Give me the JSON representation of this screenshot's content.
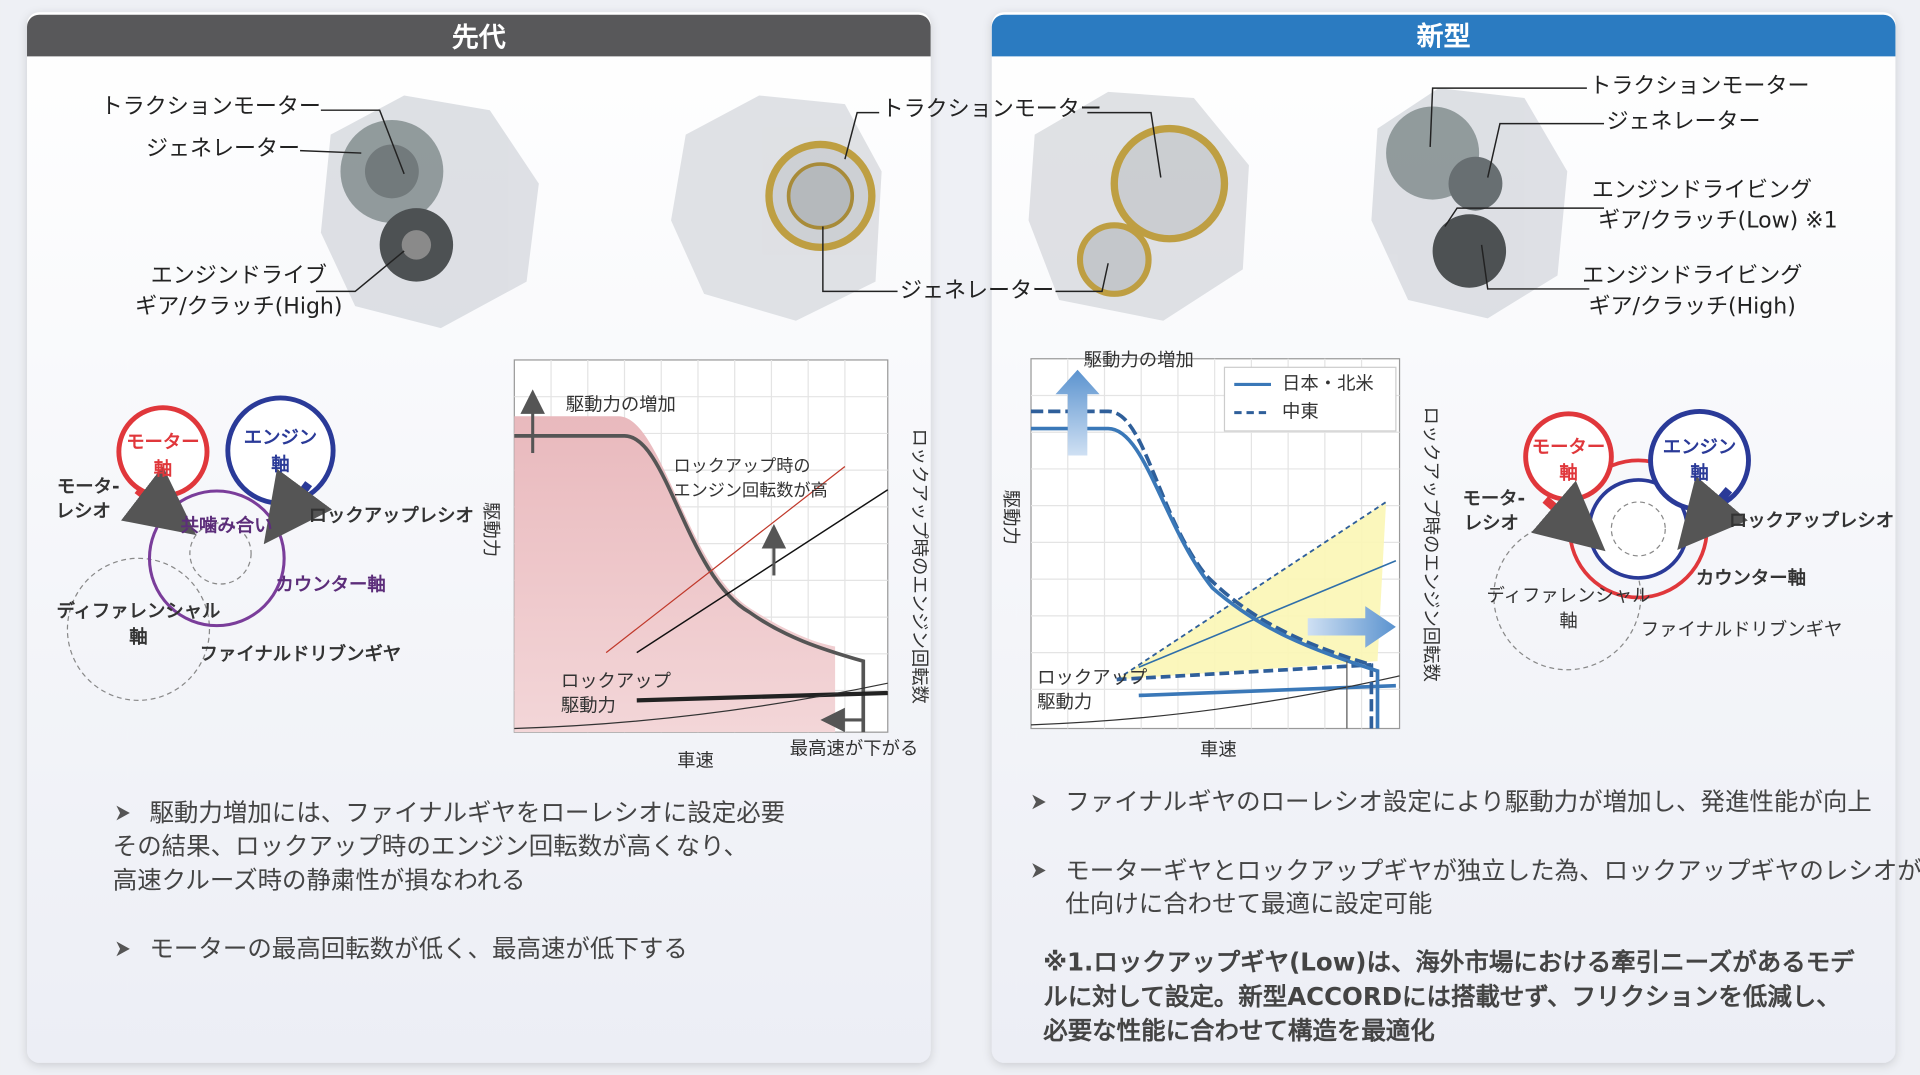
{
  "left": {
    "title": "先代",
    "photo_labels": {
      "traction": "トラクションモーター",
      "generator": "ジェネレーター",
      "drive": [
        "エンジンドライブ",
        "ギア/クラッチ(High)"
      ]
    },
    "gear": {
      "motor_shaft": [
        "モーター",
        "軸"
      ],
      "engine_shaft": [
        "エンジン",
        "軸"
      ],
      "motor_ratio": [
        "モータ-",
        "レシオ"
      ],
      "mesh": "共噛み合い",
      "lockup_ratio": "ロックアップレシオ",
      "counter": "カウンター軸",
      "diff": [
        "ディファレンシャル",
        "軸"
      ],
      "final": "ファイナルドリブンギヤ"
    },
    "graph": {
      "increase": "駆動力の増加",
      "y_label": "駆動力",
      "y2_label": "ロックアップ時のエンジン回転数",
      "annotation": [
        "ロックアップ時の",
        "エンジン回転数が高"
      ],
      "lockup": [
        "ロックアップ",
        "駆動力"
      ],
      "x_label": "車速",
      "top_speed": "最高速が下がる"
    },
    "bullets": [
      [
        "駆動力増加には、ファイナルギヤをローレシオに設定必要",
        "その結果、ロックアップ時のエンジン回転数が高くなり、",
        "高速クルーズ時の静粛性が損なわれる"
      ],
      [
        "モーターの最高回転数が低く、最高速が低下する"
      ]
    ]
  },
  "middle_labels": {
    "traction": "トラクションモーター",
    "generator": "ジェネレーター"
  },
  "right": {
    "title": "新型",
    "photo_labels": {
      "traction": "トラクションモーター",
      "generator": "ジェネレーター",
      "drive_low": [
        "エンジンドライビング",
        "ギア/クラッチ(Low) ※1"
      ],
      "drive_high": [
        "エンジンドライビング",
        "ギア/クラッチ(High)"
      ]
    },
    "graph": {
      "increase": "駆動力の増加",
      "legend": [
        "日本・北米",
        "中東"
      ],
      "y_label": "駆動力",
      "y2_label": "ロックアップ時のエンジン回転数",
      "lockup": [
        "ロックアップ",
        "駆動力"
      ],
      "x_label": "車速"
    },
    "gear": {
      "motor_shaft": [
        "モーター",
        "軸"
      ],
      "engine_shaft": [
        "エンジン",
        "軸"
      ],
      "motor_ratio": [
        "モータ-",
        "レシオ"
      ],
      "lockup_ratio": "ロックアップレシオ",
      "counter": "カウンター軸",
      "diff": [
        "ディファレンシャル",
        "軸"
      ],
      "final": "ファイナルドリブンギヤ"
    },
    "bullets": [
      [
        "ファイナルギヤのローレシオ設定により駆動力が増加し、発進性能が向上"
      ],
      [
        "モーターギヤとロックアップギヤが独立した為、ロックアップギヤのレシオが",
        "仕向けに合わせて最適に設定可能"
      ]
    ],
    "note": [
      "※1.ロックアップギヤ(Low)は、海外市場における牽引ニーズがあるモデ",
      "ルに対して設定。新型ACCORDには搭載せず、フリクションを低減し、",
      "必要な性能に合わせて構造を最適化"
    ]
  }
}
